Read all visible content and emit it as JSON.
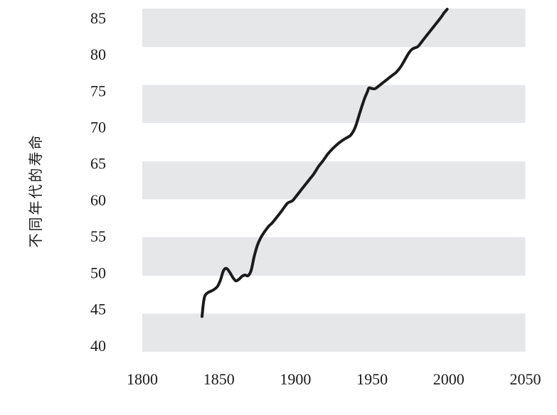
{
  "chart_data": {
    "type": "line",
    "ylabel": "不同年代的寿命",
    "xlim": [
      1800,
      2050
    ],
    "ylim": [
      37.5,
      86.3
    ],
    "xticks": [
      1800,
      1850,
      1900,
      1950,
      2000,
      2050
    ],
    "yticks": [
      40,
      45,
      50,
      55,
      60,
      65,
      70,
      75,
      80,
      85
    ],
    "legend_position": "none",
    "grid": "alternating horizontal gray bands, no gridlines, no axis lines, no tick marks",
    "bands_y_ranges": [
      [
        39.15,
        44.4
      ],
      [
        49.6,
        54.9
      ],
      [
        60.1,
        65.3
      ],
      [
        70.6,
        75.8
      ],
      [
        81.0,
        86.3
      ]
    ],
    "series": [
      {
        "name": "寿命",
        "points": [
          [
            1839,
            44.0
          ],
          [
            1840,
            46.0
          ],
          [
            1841,
            46.9
          ],
          [
            1843,
            47.3
          ],
          [
            1846,
            47.6
          ],
          [
            1849,
            48.1
          ],
          [
            1851,
            49.0
          ],
          [
            1853,
            50.3
          ],
          [
            1855,
            50.6
          ],
          [
            1857,
            50.1
          ],
          [
            1859,
            49.4
          ],
          [
            1861,
            48.9
          ],
          [
            1863,
            49.1
          ],
          [
            1865,
            49.5
          ],
          [
            1867,
            49.7
          ],
          [
            1869,
            49.6
          ],
          [
            1871,
            50.3
          ],
          [
            1873,
            52.2
          ],
          [
            1875,
            53.7
          ],
          [
            1877,
            54.7
          ],
          [
            1879,
            55.4
          ],
          [
            1881,
            56.0
          ],
          [
            1883,
            56.5
          ],
          [
            1885,
            56.9
          ],
          [
            1888,
            57.7
          ],
          [
            1891,
            58.5
          ],
          [
            1893,
            59.1
          ],
          [
            1895,
            59.6
          ],
          [
            1898,
            59.9
          ],
          [
            1900,
            60.4
          ],
          [
            1903,
            61.2
          ],
          [
            1906,
            62.0
          ],
          [
            1909,
            62.8
          ],
          [
            1912,
            63.6
          ],
          [
            1915,
            64.6
          ],
          [
            1918,
            65.4
          ],
          [
            1921,
            66.3
          ],
          [
            1924,
            67.0
          ],
          [
            1927,
            67.6
          ],
          [
            1930,
            68.1
          ],
          [
            1933,
            68.5
          ],
          [
            1936,
            68.9
          ],
          [
            1939,
            70.0
          ],
          [
            1942,
            72.0
          ],
          [
            1945,
            73.9
          ],
          [
            1947,
            74.9
          ],
          [
            1948,
            75.4
          ],
          [
            1950,
            75.3
          ],
          [
            1952,
            75.3
          ],
          [
            1954,
            75.6
          ],
          [
            1957,
            76.1
          ],
          [
            1960,
            76.6
          ],
          [
            1963,
            77.1
          ],
          [
            1966,
            77.6
          ],
          [
            1969,
            78.4
          ],
          [
            1972,
            79.5
          ],
          [
            1974,
            80.2
          ],
          [
            1976,
            80.7
          ],
          [
            1978,
            80.9
          ],
          [
            1980,
            81.1
          ],
          [
            1983,
            81.9
          ],
          [
            1986,
            82.7
          ],
          [
            1989,
            83.5
          ],
          [
            1992,
            84.3
          ],
          [
            1995,
            85.1
          ],
          [
            1997,
            85.7
          ],
          [
            1999,
            86.2
          ]
        ]
      }
    ]
  },
  "colors": {
    "background": "#ffffff",
    "band": "#e6e7e9",
    "band_light": "#fafbfc",
    "line": "#1b1b1b",
    "text": "#1a1a1a"
  }
}
